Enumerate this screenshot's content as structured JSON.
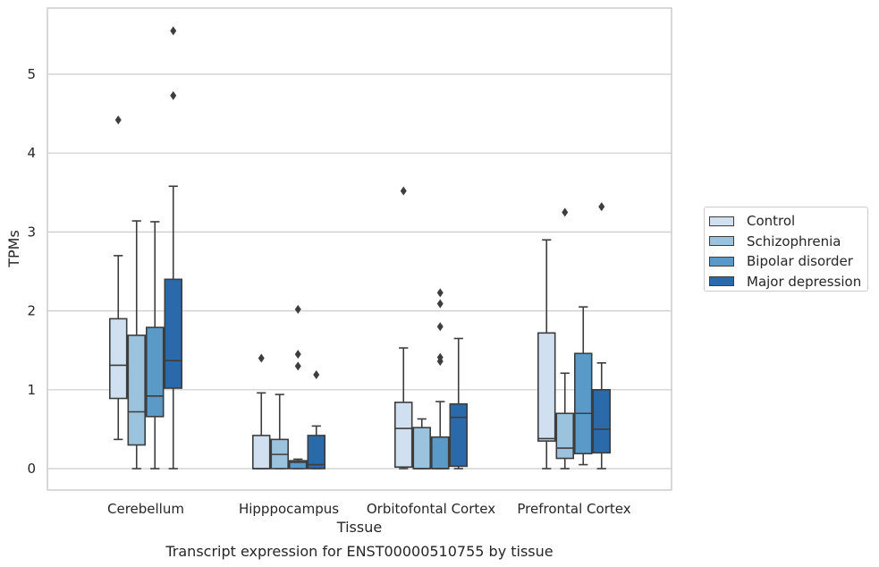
{
  "caption": "Transcript expression for ENST00000510755 by tissue",
  "chart_data": {
    "type": "boxplot",
    "xlabel": "Tissue",
    "ylabel": "TPMs",
    "ylim": [
      -0.27,
      5.85
    ],
    "yticks": [
      0,
      1,
      2,
      3,
      4,
      5
    ],
    "grid": "horizontal",
    "legend_position": "right",
    "categories": [
      "Cerebellum",
      "Hipppocampus",
      "Orbitofontal Cortex",
      "Prefrontal Cortex"
    ],
    "series": [
      {
        "name": "Control",
        "color": "#d0e0f0",
        "boxes": [
          {
            "whisker_low": 0.37,
            "q1": 0.89,
            "median": 1.31,
            "q3": 1.9,
            "whisker_high": 2.7,
            "outliers": [
              4.42
            ]
          },
          {
            "whisker_low": 0.0,
            "q1": 0.0,
            "median": 0.0,
            "q3": 0.42,
            "whisker_high": 0.96,
            "outliers": [
              1.4
            ]
          },
          {
            "whisker_low": 0.0,
            "q1": 0.02,
            "median": 0.51,
            "q3": 0.84,
            "whisker_high": 1.53,
            "outliers": [
              3.52
            ]
          },
          {
            "whisker_low": 0.0,
            "q1": 0.35,
            "median": 0.38,
            "q3": 1.72,
            "whisker_high": 2.9,
            "outliers": []
          }
        ]
      },
      {
        "name": "Schizophrenia",
        "color": "#9bc3dd",
        "boxes": [
          {
            "whisker_low": 0.0,
            "q1": 0.3,
            "median": 0.72,
            "q3": 1.69,
            "whisker_high": 3.14,
            "outliers": []
          },
          {
            "whisker_low": 0.0,
            "q1": 0.0,
            "median": 0.18,
            "q3": 0.37,
            "whisker_high": 0.94,
            "outliers": []
          },
          {
            "whisker_low": 0.0,
            "q1": 0.0,
            "median": 0.0,
            "q3": 0.52,
            "whisker_high": 0.63,
            "outliers": []
          },
          {
            "whisker_low": 0.0,
            "q1": 0.13,
            "median": 0.26,
            "q3": 0.7,
            "whisker_high": 1.21,
            "outliers": [
              3.25
            ]
          }
        ]
      },
      {
        "name": "Bipolar disorder",
        "color": "#5a9ac9",
        "boxes": [
          {
            "whisker_low": 0.0,
            "q1": 0.66,
            "median": 0.92,
            "q3": 1.79,
            "whisker_high": 3.13,
            "outliers": []
          },
          {
            "whisker_low": 0.0,
            "q1": 0.0,
            "median": 0.08,
            "q3": 0.1,
            "whisker_high": 0.12,
            "outliers": [
              1.3,
              1.45,
              2.02
            ]
          },
          {
            "whisker_low": 0.0,
            "q1": 0.0,
            "median": 0.0,
            "q3": 0.4,
            "whisker_high": 0.85,
            "outliers": [
              1.36,
              1.41,
              1.8,
              2.09,
              2.23
            ]
          },
          {
            "whisker_low": 0.05,
            "q1": 0.19,
            "median": 0.7,
            "q3": 1.46,
            "whisker_high": 2.05,
            "outliers": []
          }
        ]
      },
      {
        "name": "Major depression",
        "color": "#2b6aaa",
        "boxes": [
          {
            "whisker_low": 0.0,
            "q1": 1.02,
            "median": 1.37,
            "q3": 2.4,
            "whisker_high": 3.58,
            "outliers": [
              4.73,
              5.55
            ]
          },
          {
            "whisker_low": 0.0,
            "q1": 0.0,
            "median": 0.05,
            "q3": 0.42,
            "whisker_high": 0.54,
            "outliers": [
              1.19
            ]
          },
          {
            "whisker_low": 0.0,
            "q1": 0.03,
            "median": 0.65,
            "q3": 0.82,
            "whisker_high": 1.65,
            "outliers": []
          },
          {
            "whisker_low": 0.0,
            "q1": 0.2,
            "median": 0.5,
            "q3": 1.0,
            "whisker_high": 1.34,
            "outliers": [
              3.32
            ]
          }
        ]
      }
    ]
  }
}
